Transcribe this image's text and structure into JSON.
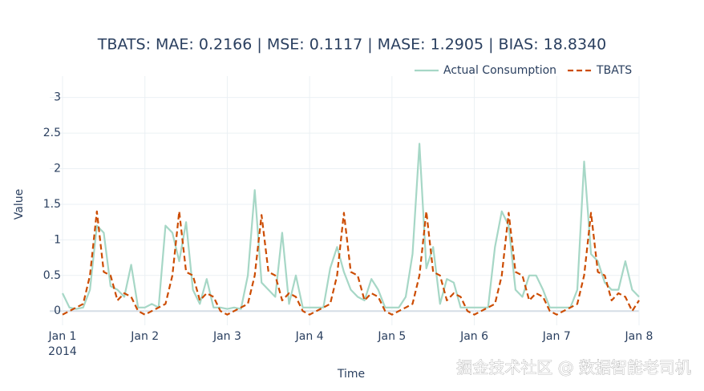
{
  "chart_data": {
    "type": "line",
    "title": "TBATS: MAE: 0.2166 | MSE: 0.1117 | MASE: 1.2905 | BIAS: 18.8340",
    "x_title": "Time",
    "y_title": "Value",
    "x_year_label": "2014",
    "watermark": "掘金技术社区 @ 数据智能老司机",
    "legend": "top-right",
    "grid": true,
    "x": [
      0,
      2,
      4,
      6,
      8,
      10,
      12,
      14,
      16,
      18,
      20,
      22,
      24,
      26,
      28,
      30,
      32,
      34,
      36,
      38,
      40,
      42,
      44,
      46,
      48,
      50,
      52,
      54,
      56,
      58,
      60,
      62,
      64,
      66,
      68,
      70,
      72,
      74,
      76,
      78,
      80,
      82,
      84,
      86,
      88,
      90,
      92,
      94,
      96,
      98,
      100,
      102,
      104,
      106,
      108,
      110,
      112,
      114,
      116,
      118,
      120,
      122,
      124,
      126,
      128,
      130,
      132,
      134,
      136,
      138,
      140,
      142,
      144,
      146,
      148,
      150,
      152,
      154,
      156,
      158,
      160,
      162,
      164,
      166,
      168
    ],
    "xlim": [
      0,
      168
    ],
    "xticks": [
      {
        "value": 0,
        "label": "Jan 1"
      },
      {
        "value": 24,
        "label": "Jan 2"
      },
      {
        "value": 48,
        "label": "Jan 3"
      },
      {
        "value": 72,
        "label": "Jan 4"
      },
      {
        "value": 96,
        "label": "Jan 5"
      },
      {
        "value": 120,
        "label": "Jan 6"
      },
      {
        "value": 144,
        "label": "Jan 7"
      },
      {
        "value": 168,
        "label": "Jan 8"
      }
    ],
    "ylim": [
      -0.2,
      3.3
    ],
    "yticks": [
      0,
      0.5,
      1,
      1.5,
      2,
      2.5,
      3
    ],
    "series": [
      {
        "name": "Actual Consumption",
        "color": "#a6d7c6",
        "dash": "solid",
        "values": [
          0.25,
          0.05,
          0.03,
          0.05,
          0.3,
          1.2,
          1.1,
          0.35,
          0.3,
          0.2,
          0.65,
          0.05,
          0.05,
          0.1,
          0.05,
          1.2,
          1.1,
          0.7,
          1.25,
          0.3,
          0.1,
          0.45,
          0.05,
          0.05,
          0.03,
          0.05,
          0.03,
          0.5,
          1.7,
          0.4,
          0.3,
          0.2,
          1.1,
          0.1,
          0.5,
          0.05,
          0.05,
          0.05,
          0.05,
          0.6,
          0.9,
          0.55,
          0.3,
          0.2,
          0.15,
          0.45,
          0.3,
          0.05,
          0.05,
          0.05,
          0.2,
          0.8,
          2.35,
          0.6,
          0.9,
          0.1,
          0.45,
          0.4,
          0.05,
          0.05,
          0.05,
          0.05,
          0.05,
          0.9,
          1.4,
          1.2,
          0.3,
          0.2,
          0.5,
          0.5,
          0.3,
          0.05,
          0.05,
          0.05,
          0.05,
          0.3,
          2.1,
          0.8,
          0.7,
          0.4,
          0.3,
          0.3,
          0.7,
          0.3,
          0.2
        ]
      },
      {
        "name": "TBATS",
        "color": "#cc4c02",
        "dash": "dashed",
        "values": [
          -0.05,
          0.0,
          0.05,
          0.1,
          0.5,
          1.4,
          0.55,
          0.5,
          0.15,
          0.25,
          0.2,
          0.0,
          -0.05,
          0.0,
          0.05,
          0.1,
          0.5,
          1.4,
          0.55,
          0.5,
          0.15,
          0.25,
          0.2,
          0.0,
          -0.05,
          0.0,
          0.05,
          0.1,
          0.5,
          1.35,
          0.55,
          0.5,
          0.15,
          0.25,
          0.2,
          0.0,
          -0.05,
          0.0,
          0.05,
          0.1,
          0.5,
          1.38,
          0.55,
          0.5,
          0.15,
          0.25,
          0.2,
          0.0,
          -0.05,
          0.0,
          0.05,
          0.1,
          0.5,
          1.4,
          0.55,
          0.5,
          0.15,
          0.25,
          0.2,
          0.0,
          -0.05,
          0.0,
          0.05,
          0.1,
          0.5,
          1.38,
          0.55,
          0.5,
          0.15,
          0.25,
          0.2,
          0.0,
          -0.05,
          0.0,
          0.05,
          0.1,
          0.5,
          1.38,
          0.55,
          0.5,
          0.15,
          0.25,
          0.2,
          0.0,
          0.15
        ]
      }
    ]
  }
}
